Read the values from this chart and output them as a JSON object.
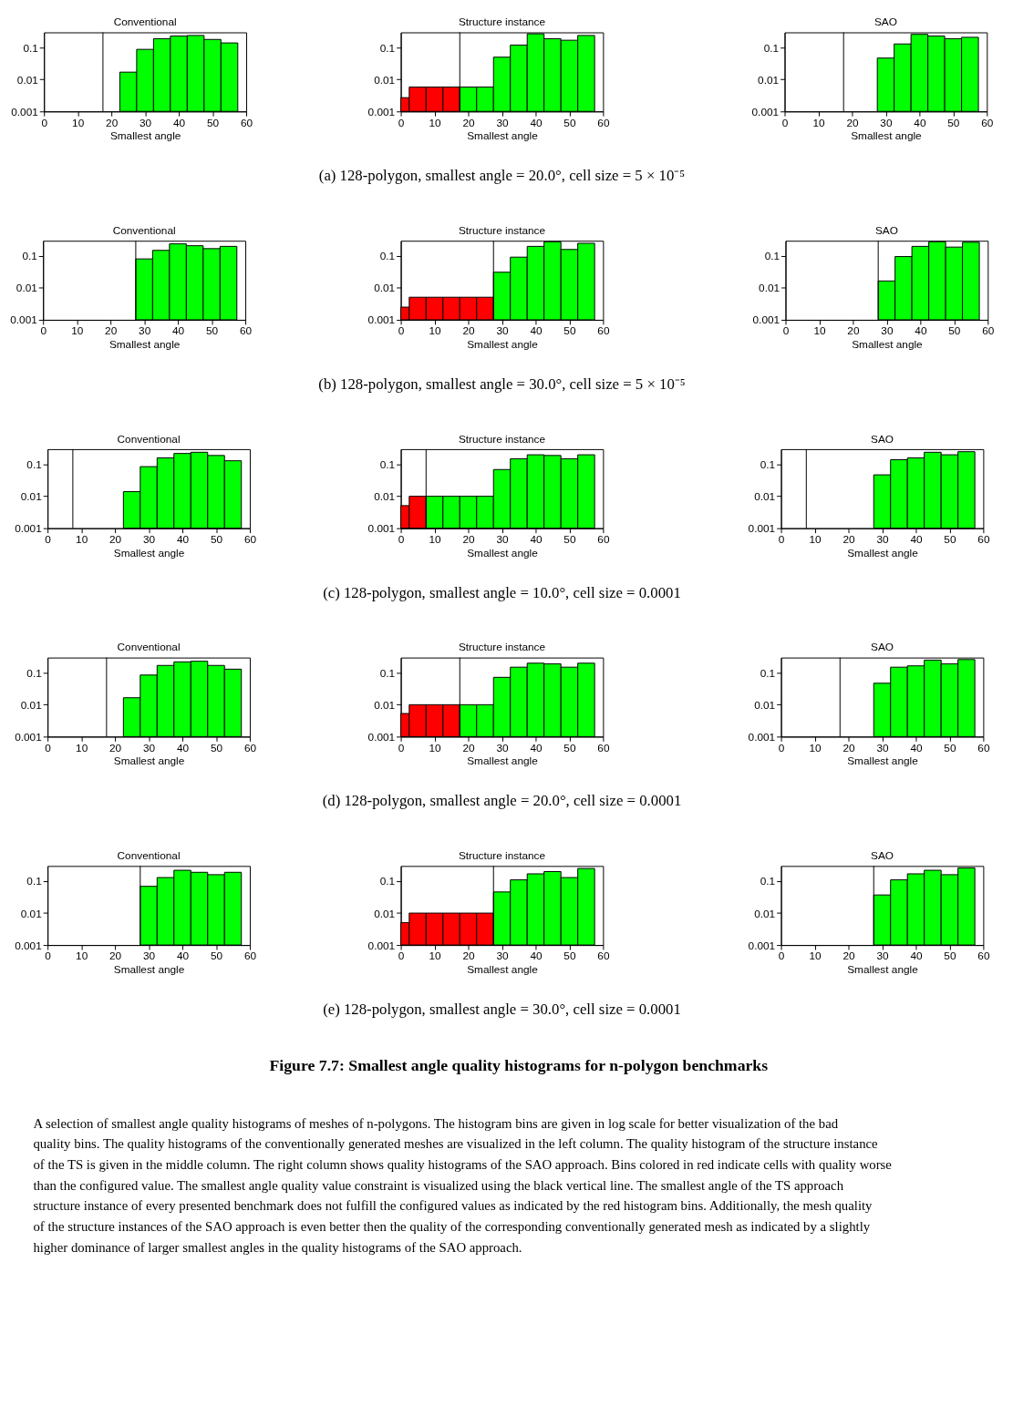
{
  "chart_data": [
    {
      "type": "histogram",
      "title": "Conventional",
      "xlabel": "Smallest angle",
      "bins": [
        22.5,
        27.5,
        32.5,
        37.5,
        42.5,
        47.5,
        52.5,
        57.5
      ],
      "values": [
        0.017,
        0.088,
        0.19,
        0.23,
        0.24,
        0.18,
        0.14
      ],
      "colors": [
        "#00ff00",
        "#00ff00",
        "#00ff00",
        "#00ff00",
        "#00ff00",
        "#00ff00",
        "#00ff00"
      ],
      "xlim": [
        0,
        60
      ],
      "ylim": [
        0.001,
        0.3
      ],
      "xticks": [
        0,
        10,
        20,
        30,
        40,
        50,
        60
      ],
      "yticks": [
        0.001,
        0.01,
        0.1
      ],
      "log": true,
      "ref_lines": [
        {
          "axis": "x",
          "value": 17.5,
          "color": "#000000"
        }
      ]
    },
    {
      "type": "histogram",
      "title": "Structure instance",
      "xlabel": "Smallest angle",
      "bins": [
        0,
        2.5,
        7.5,
        12.5,
        17.5,
        22.5,
        27.5,
        32.5,
        37.5,
        42.5,
        47.5,
        52.5,
        57.5
      ],
      "values": [
        0.0027,
        0.0058,
        0.0058,
        0.0058,
        0.0058,
        0.0058,
        0.05,
        0.12,
        0.27,
        0.19,
        0.17,
        0.24
      ],
      "colors": [
        "#ff0000",
        "#ff0000",
        "#ff0000",
        "#ff0000",
        "#00ff00",
        "#00ff00",
        "#00ff00",
        "#00ff00",
        "#00ff00",
        "#00ff00",
        "#00ff00",
        "#00ff00"
      ],
      "xlim": [
        0,
        60
      ],
      "ylim": [
        0.001,
        0.3
      ],
      "xticks": [
        0,
        10,
        20,
        30,
        40,
        50,
        60
      ],
      "yticks": [
        0.001,
        0.01,
        0.1
      ],
      "log": true,
      "ref_lines": [
        {
          "axis": "x",
          "value": 17.5,
          "color": "#000000"
        }
      ],
      "annotations": [
        "(a) 128-polygon, smallest angle = 20.0°, cell size = 5 × 10⁻⁵"
      ]
    },
    {
      "type": "histogram",
      "title": "SAO",
      "xlabel": "Smallest angle",
      "bins": [
        27.5,
        32.5,
        37.5,
        42.5,
        47.5,
        52.5,
        57.5
      ],
      "values": [
        0.047,
        0.13,
        0.26,
        0.23,
        0.19,
        0.21
      ],
      "colors": [
        "#00ff00",
        "#00ff00",
        "#00ff00",
        "#00ff00",
        "#00ff00",
        "#00ff00"
      ],
      "xlim": [
        0,
        60
      ],
      "ylim": [
        0.001,
        0.3
      ],
      "xticks": [
        0,
        10,
        20,
        30,
        40,
        50,
        60
      ],
      "yticks": [
        0.001,
        0.01,
        0.1
      ],
      "log": true,
      "ref_lines": [
        {
          "axis": "x",
          "value": 17.5,
          "color": "#000000"
        }
      ]
    },
    {
      "type": "histogram",
      "title": "Conventional",
      "xlabel": "Smallest angle",
      "bins": [
        27.5,
        32.5,
        37.5,
        42.5,
        47.5,
        52.5,
        57.5
      ],
      "values": [
        0.081,
        0.15,
        0.24,
        0.21,
        0.17,
        0.2
      ],
      "colors": [
        "#00ff00",
        "#00ff00",
        "#00ff00",
        "#00ff00",
        "#00ff00",
        "#00ff00"
      ],
      "xlim": [
        0,
        60
      ],
      "ylim": [
        0.001,
        0.3
      ],
      "xticks": [
        0,
        10,
        20,
        30,
        40,
        50,
        60
      ],
      "yticks": [
        0.001,
        0.01,
        0.1
      ],
      "log": true,
      "ref_lines": [
        {
          "axis": "x",
          "value": 27.5,
          "color": "#000000"
        }
      ]
    },
    {
      "type": "histogram",
      "title": "Structure instance",
      "xlabel": "Smallest angle",
      "bins": [
        0,
        2.5,
        7.5,
        12.5,
        17.5,
        22.5,
        27.5,
        32.5,
        37.5,
        42.5,
        47.5,
        52.5,
        57.5
      ],
      "values": [
        0.0025,
        0.0051,
        0.0051,
        0.0051,
        0.0051,
        0.0051,
        0.031,
        0.092,
        0.2,
        0.28,
        0.16,
        0.25
      ],
      "colors": [
        "#ff0000",
        "#ff0000",
        "#ff0000",
        "#ff0000",
        "#ff0000",
        "#ff0000",
        "#00ff00",
        "#00ff00",
        "#00ff00",
        "#00ff00",
        "#00ff00",
        "#00ff00"
      ],
      "xlim": [
        0,
        60
      ],
      "ylim": [
        0.001,
        0.3
      ],
      "xticks": [
        0,
        10,
        20,
        30,
        40,
        50,
        60
      ],
      "yticks": [
        0.001,
        0.01,
        0.1
      ],
      "log": true,
      "ref_lines": [
        {
          "axis": "x",
          "value": 27.5,
          "color": "#000000"
        }
      ],
      "annotations": [
        "(b) 128-polygon, smallest angle = 30.0°, cell size = 5 × 10⁻⁵"
      ]
    },
    {
      "type": "histogram",
      "title": "SAO",
      "xlabel": "Smallest angle",
      "bins": [
        27.5,
        32.5,
        37.5,
        42.5,
        47.5,
        52.5,
        57.5
      ],
      "values": [
        0.0165,
        0.096,
        0.2,
        0.28,
        0.19,
        0.27
      ],
      "colors": [
        "#00ff00",
        "#00ff00",
        "#00ff00",
        "#00ff00",
        "#00ff00",
        "#00ff00"
      ],
      "xlim": [
        0,
        60
      ],
      "ylim": [
        0.001,
        0.3
      ],
      "xticks": [
        0,
        10,
        20,
        30,
        40,
        50,
        60
      ],
      "yticks": [
        0.001,
        0.01,
        0.1
      ],
      "log": true,
      "ref_lines": [
        {
          "axis": "x",
          "value": 27.5,
          "color": "#000000"
        }
      ]
    },
    {
      "type": "histogram",
      "title": "Conventional",
      "xlabel": "Smallest angle",
      "bins": [
        22.5,
        27.5,
        32.5,
        37.5,
        42.5,
        47.5,
        52.5,
        57.5
      ],
      "values": [
        0.014,
        0.085,
        0.16,
        0.22,
        0.24,
        0.19,
        0.13
      ],
      "colors": [
        "#00ff00",
        "#00ff00",
        "#00ff00",
        "#00ff00",
        "#00ff00",
        "#00ff00",
        "#00ff00"
      ],
      "xlim": [
        0,
        60
      ],
      "ylim": [
        0.001,
        0.3
      ],
      "xticks": [
        0,
        10,
        20,
        30,
        40,
        50,
        60
      ],
      "yticks": [
        0.001,
        0.01,
        0.1
      ],
      "log": true,
      "ref_lines": [
        {
          "axis": "x",
          "value": 7.5,
          "color": "#000000"
        }
      ]
    },
    {
      "type": "histogram",
      "title": "Structure instance",
      "xlabel": "Smallest angle",
      "bins": [
        0,
        2.5,
        7.5,
        12.5,
        17.5,
        22.5,
        27.5,
        32.5,
        37.5,
        42.5,
        47.5,
        52.5,
        57.5
      ],
      "values": [
        0.0051,
        0.01,
        0.01,
        0.01,
        0.01,
        0.01,
        0.069,
        0.15,
        0.2,
        0.19,
        0.15,
        0.2
      ],
      "colors": [
        "#ff0000",
        "#ff0000",
        "#00ff00",
        "#00ff00",
        "#00ff00",
        "#00ff00",
        "#00ff00",
        "#00ff00",
        "#00ff00",
        "#00ff00",
        "#00ff00",
        "#00ff00"
      ],
      "xlim": [
        0,
        60
      ],
      "ylim": [
        0.001,
        0.3
      ],
      "xticks": [
        0,
        10,
        20,
        30,
        40,
        50,
        60
      ],
      "yticks": [
        0.001,
        0.01,
        0.1
      ],
      "log": true,
      "ref_lines": [
        {
          "axis": "x",
          "value": 7.5,
          "color": "#000000"
        }
      ],
      "annotations": [
        "(c) 128-polygon, smallest angle = 10.0°, cell size = 0.0001"
      ]
    },
    {
      "type": "histogram",
      "title": "SAO",
      "xlabel": "Smallest angle",
      "bins": [
        27.5,
        32.5,
        37.5,
        42.5,
        47.5,
        52.5,
        57.5
      ],
      "values": [
        0.047,
        0.14,
        0.16,
        0.24,
        0.2,
        0.25
      ],
      "colors": [
        "#00ff00",
        "#00ff00",
        "#00ff00",
        "#00ff00",
        "#00ff00",
        "#00ff00"
      ],
      "xlim": [
        0,
        60
      ],
      "ylim": [
        0.001,
        0.3
      ],
      "xticks": [
        0,
        10,
        20,
        30,
        40,
        50,
        60
      ],
      "yticks": [
        0.001,
        0.01,
        0.1
      ],
      "log": true,
      "ref_lines": [
        {
          "axis": "x",
          "value": 7.5,
          "color": "#000000"
        }
      ]
    },
    {
      "type": "histogram",
      "title": "Conventional",
      "xlabel": "Smallest angle",
      "bins": [
        22.5,
        27.5,
        32.5,
        37.5,
        42.5,
        47.5,
        52.5,
        57.5
      ],
      "values": [
        0.0165,
        0.085,
        0.17,
        0.22,
        0.23,
        0.17,
        0.13
      ],
      "colors": [
        "#00ff00",
        "#00ff00",
        "#00ff00",
        "#00ff00",
        "#00ff00",
        "#00ff00",
        "#00ff00"
      ],
      "xlim": [
        0,
        60
      ],
      "ylim": [
        0.001,
        0.3
      ],
      "xticks": [
        0,
        10,
        20,
        30,
        40,
        50,
        60
      ],
      "yticks": [
        0.001,
        0.01,
        0.1
      ],
      "log": true,
      "ref_lines": [
        {
          "axis": "x",
          "value": 17.5,
          "color": "#000000"
        }
      ]
    },
    {
      "type": "histogram",
      "title": "Structure instance",
      "xlabel": "Smallest angle",
      "bins": [
        0,
        2.5,
        7.5,
        12.5,
        17.5,
        22.5,
        27.5,
        32.5,
        37.5,
        42.5,
        47.5,
        52.5,
        57.5
      ],
      "values": [
        0.0053,
        0.01,
        0.01,
        0.01,
        0.01,
        0.01,
        0.072,
        0.15,
        0.2,
        0.19,
        0.15,
        0.2
      ],
      "colors": [
        "#ff0000",
        "#ff0000",
        "#ff0000",
        "#ff0000",
        "#00ff00",
        "#00ff00",
        "#00ff00",
        "#00ff00",
        "#00ff00",
        "#00ff00",
        "#00ff00",
        "#00ff00"
      ],
      "xlim": [
        0,
        60
      ],
      "ylim": [
        0.001,
        0.3
      ],
      "xticks": [
        0,
        10,
        20,
        30,
        40,
        50,
        60
      ],
      "yticks": [
        0.001,
        0.01,
        0.1
      ],
      "log": true,
      "ref_lines": [
        {
          "axis": "x",
          "value": 17.5,
          "color": "#000000"
        }
      ],
      "annotations": [
        "(d) 128-polygon, smallest angle = 20.0°, cell size = 0.0001"
      ]
    },
    {
      "type": "histogram",
      "title": "SAO",
      "xlabel": "Smallest angle",
      "bins": [
        27.5,
        32.5,
        37.5,
        42.5,
        47.5,
        52.5,
        57.5
      ],
      "values": [
        0.047,
        0.15,
        0.165,
        0.25,
        0.19,
        0.26
      ],
      "colors": [
        "#00ff00",
        "#00ff00",
        "#00ff00",
        "#00ff00",
        "#00ff00",
        "#00ff00"
      ],
      "xlim": [
        0,
        60
      ],
      "ylim": [
        0.001,
        0.3
      ],
      "xticks": [
        0,
        10,
        20,
        30,
        40,
        50,
        60
      ],
      "yticks": [
        0.001,
        0.01,
        0.1
      ],
      "log": true,
      "ref_lines": [
        {
          "axis": "x",
          "value": 17.5,
          "color": "#000000"
        }
      ]
    },
    {
      "type": "histogram",
      "title": "Conventional",
      "xlabel": "Smallest angle",
      "bins": [
        27.5,
        32.5,
        37.5,
        42.5,
        47.5,
        52.5,
        57.5
      ],
      "values": [
        0.069,
        0.13,
        0.22,
        0.19,
        0.16,
        0.19
      ],
      "colors": [
        "#00ff00",
        "#00ff00",
        "#00ff00",
        "#00ff00",
        "#00ff00",
        "#00ff00"
      ],
      "xlim": [
        0,
        60
      ],
      "ylim": [
        0.001,
        0.3
      ],
      "xticks": [
        0,
        10,
        20,
        30,
        40,
        50,
        60
      ],
      "yticks": [
        0.001,
        0.01,
        0.1
      ],
      "log": true,
      "ref_lines": [
        {
          "axis": "x",
          "value": 27.5,
          "color": "#000000"
        }
      ]
    },
    {
      "type": "histogram",
      "title": "Structure instance",
      "xlabel": "Smallest angle",
      "bins": [
        0,
        2.5,
        7.5,
        12.5,
        17.5,
        22.5,
        27.5,
        32.5,
        37.5,
        42.5,
        47.5,
        52.5,
        57.5
      ],
      "values": [
        0.005,
        0.01,
        0.01,
        0.01,
        0.01,
        0.01,
        0.046,
        0.11,
        0.17,
        0.2,
        0.13,
        0.25
      ],
      "colors": [
        "#ff0000",
        "#ff0000",
        "#ff0000",
        "#ff0000",
        "#ff0000",
        "#ff0000",
        "#00ff00",
        "#00ff00",
        "#00ff00",
        "#00ff00",
        "#00ff00",
        "#00ff00"
      ],
      "xlim": [
        0,
        60
      ],
      "ylim": [
        0.001,
        0.3
      ],
      "xticks": [
        0,
        10,
        20,
        30,
        40,
        50,
        60
      ],
      "yticks": [
        0.001,
        0.01,
        0.1
      ],
      "log": true,
      "ref_lines": [
        {
          "axis": "x",
          "value": 27.5,
          "color": "#000000"
        }
      ],
      "annotations": [
        "(e) 128-polygon, smallest angle = 30.0°, cell size = 0.0001"
      ]
    },
    {
      "type": "histogram",
      "title": "SAO",
      "xlabel": "Smallest angle",
      "bins": [
        27.5,
        32.5,
        37.5,
        42.5,
        47.5,
        52.5,
        57.5
      ],
      "values": [
        0.037,
        0.11,
        0.17,
        0.22,
        0.16,
        0.26
      ],
      "colors": [
        "#00ff00",
        "#00ff00",
        "#00ff00",
        "#00ff00",
        "#00ff00",
        "#00ff00"
      ],
      "xlim": [
        0,
        60
      ],
      "ylim": [
        0.001,
        0.3
      ],
      "xticks": [
        0,
        10,
        20,
        30,
        40,
        50,
        60
      ],
      "yticks": [
        0.001,
        0.01,
        0.1
      ],
      "log": true,
      "ref_lines": [
        {
          "axis": "x",
          "value": 27.5,
          "color": "#000000"
        }
      ]
    },
    {
      "type": "other",
      "title": "Figure 7.7: Smallest angle quality histograms for n-polygon benchmarks",
      "annotations": [
        "A selection of smallest angle quality histograms of meshes of n-polygons. The histogram bins are given in log scale for better visualization of the bad quality bins. The quality histograms of the conventionally generated meshes are visualized in the left column. The quality histogram of the structure instance of the TS is given in the middle column. The right column shows quality histograms of the SAO approach. Bins colored in red indicate cells with quality worse than the configured value. The smallest angle quality value constraint is visualized using the black vertical line. The smallest angle of the TS approach structure instance of every presented benchmark does not fulfill the configured values as indicated by the red histogram bins. Additionally, the mesh quality of the structure instances of the SAO approach is even better then the quality of the corresponding conventionally generated mesh as indicated by a slightly higher dominance of larger smallest angles in the quality histograms of the SAO approach."
      ]
    }
  ]
}
